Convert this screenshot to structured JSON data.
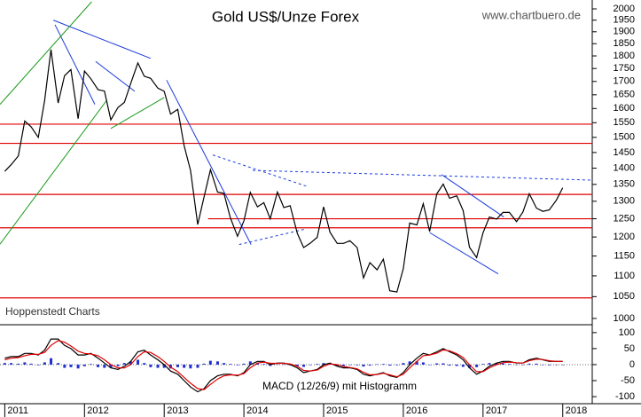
{
  "chart_data": [
    {
      "type": "line",
      "title": "Gold US$/Unze Forex",
      "source": "www.chartbuero.de",
      "annotation": "Hoppenstedt Charts",
      "x": [
        2011.0,
        2011.08,
        2011.17,
        2011.25,
        2011.33,
        2011.42,
        2011.5,
        2011.58,
        2011.67,
        2011.75,
        2011.83,
        2011.92,
        2012.0,
        2012.08,
        2012.17,
        2012.25,
        2012.33,
        2012.42,
        2012.5,
        2012.58,
        2012.67,
        2012.75,
        2012.83,
        2012.92,
        2013.0,
        2013.08,
        2013.17,
        2013.25,
        2013.33,
        2013.42,
        2013.5,
        2013.58,
        2013.67,
        2013.75,
        2013.83,
        2013.92,
        2014.0,
        2014.08,
        2014.17,
        2014.25,
        2014.33,
        2014.42,
        2014.5,
        2014.58,
        2014.67,
        2014.75,
        2014.83,
        2014.92,
        2015.0,
        2015.08,
        2015.17,
        2015.25,
        2015.33,
        2015.42,
        2015.5,
        2015.58,
        2015.67,
        2015.75,
        2015.83,
        2015.92,
        2016.0,
        2016.08,
        2016.17,
        2016.25,
        2016.33,
        2016.42,
        2016.5,
        2016.58,
        2016.67,
        2016.75,
        2016.83,
        2016.92,
        2017.0,
        2017.08,
        2017.17,
        2017.25,
        2017.33,
        2017.42,
        2017.5,
        2017.58,
        2017.67,
        2017.75,
        2017.83,
        2017.92,
        2018.0
      ],
      "series": [
        {
          "color": "#000000",
          "values": [
            1390,
            1411,
            1439,
            1556,
            1536,
            1500,
            1628,
            1826,
            1620,
            1722,
            1746,
            1564,
            1740,
            1710,
            1669,
            1664,
            1560,
            1604,
            1622,
            1692,
            1772,
            1720,
            1712,
            1675,
            1663,
            1580,
            1597,
            1472,
            1393,
            1234,
            1313,
            1395,
            1327,
            1323,
            1253,
            1202,
            1244,
            1326,
            1284,
            1296,
            1250,
            1327,
            1282,
            1287,
            1210,
            1172,
            1183,
            1199,
            1284,
            1213,
            1183,
            1183,
            1190,
            1172,
            1095,
            1133,
            1115,
            1142,
            1064,
            1061,
            1118,
            1238,
            1233,
            1293,
            1215,
            1322,
            1351,
            1309,
            1316,
            1273,
            1173,
            1146,
            1211,
            1255,
            1249,
            1268,
            1268,
            1242,
            1269,
            1322,
            1280,
            1271,
            1275,
            1303,
            1340
          ]
        }
      ],
      "xlim": [
        2010.94,
        2018.37
      ],
      "ylim": [
        986,
        2032
      ],
      "log_scale": true,
      "yticks": [
        1000,
        1050,
        1100,
        1150,
        1200,
        1250,
        1300,
        1350,
        1400,
        1450,
        1500,
        1550,
        1600,
        1650,
        1700,
        1750,
        1800,
        1850,
        1900,
        1950,
        2000
      ],
      "horizontal_lines": {
        "color": "#e00000",
        "lines": [
          {
            "value": 1545
          },
          {
            "value": 1480
          },
          {
            "value": 1320
          },
          {
            "value": 1250,
            "from": 2013.55
          },
          {
            "value": 1225
          },
          {
            "value": 1047
          }
        ]
      },
      "trend_lines": [
        {
          "color": "#1a3adc",
          "dashed": false,
          "points": [
            [
              2011.61,
              1950
            ],
            [
              2012.83,
              1790
            ]
          ]
        },
        {
          "color": "#1a3adc",
          "dashed": false,
          "points": [
            [
              2011.63,
              1930
            ],
            [
              2012.13,
              1615
            ]
          ]
        },
        {
          "color": "#1a3adc",
          "dashed": false,
          "points": [
            [
              2012.14,
              1778
            ],
            [
              2012.63,
              1663
            ]
          ]
        },
        {
          "color": "#1a3adc",
          "dashed": false,
          "points": [
            [
              2013.03,
              1705
            ],
            [
              2014.09,
              1180
            ]
          ]
        },
        {
          "color": "#1a3adc",
          "dashed": true,
          "points": [
            [
              2013.61,
              1442
            ],
            [
              2014.78,
              1345
            ]
          ]
        },
        {
          "color": "#1a3adc",
          "dashed": true,
          "points": [
            [
              2013.94,
              1180
            ],
            [
              2014.78,
              1222
            ]
          ]
        },
        {
          "color": "#1a3adc",
          "dashed": true,
          "points": [
            [
              2014.11,
              1393
            ],
            [
              2018.37,
              1363
            ]
          ]
        },
        {
          "color": "#1a3adc",
          "dashed": false,
          "points": [
            [
              2016.48,
              1380
            ],
            [
              2017.26,
              1255
            ]
          ]
        },
        {
          "color": "#1a3adc",
          "dashed": false,
          "points": [
            [
              2016.33,
              1212
            ],
            [
              2017.19,
              1105
            ]
          ]
        },
        {
          "color": "#1a9a1a",
          "dashed": false,
          "points": [
            [
              2010.94,
              1615
            ],
            [
              2012.09,
              2032
            ]
          ]
        },
        {
          "color": "#1a9a1a",
          "dashed": false,
          "points": [
            [
              2010.94,
              1181
            ],
            [
              2012.28,
              1630
            ]
          ]
        },
        {
          "color": "#1a9a1a",
          "dashed": false,
          "points": [
            [
              2012.33,
              1530
            ],
            [
              2013.0,
              1640
            ]
          ]
        }
      ]
    },
    {
      "type": "line",
      "annotation": "MACD (12/26/9) mit Histogramm",
      "x": [
        2011.0,
        2011.08,
        2011.17,
        2011.25,
        2011.33,
        2011.42,
        2011.5,
        2011.58,
        2011.67,
        2011.75,
        2011.83,
        2011.92,
        2012.0,
        2012.08,
        2012.17,
        2012.25,
        2012.33,
        2012.42,
        2012.5,
        2012.58,
        2012.67,
        2012.75,
        2012.83,
        2012.92,
        2013.0,
        2013.08,
        2013.17,
        2013.25,
        2013.33,
        2013.42,
        2013.5,
        2013.58,
        2013.67,
        2013.75,
        2013.83,
        2013.92,
        2014.0,
        2014.08,
        2014.17,
        2014.25,
        2014.33,
        2014.42,
        2014.5,
        2014.58,
        2014.67,
        2014.75,
        2014.83,
        2014.92,
        2015.0,
        2015.08,
        2015.17,
        2015.25,
        2015.33,
        2015.42,
        2015.5,
        2015.58,
        2015.67,
        2015.75,
        2015.83,
        2015.92,
        2016.0,
        2016.08,
        2016.17,
        2016.25,
        2016.33,
        2016.42,
        2016.5,
        2016.58,
        2016.67,
        2016.75,
        2016.83,
        2016.92,
        2017.0,
        2017.08,
        2017.17,
        2017.25,
        2017.33,
        2017.42,
        2017.5,
        2017.58,
        2017.67,
        2017.75,
        2017.83,
        2017.92,
        2018.0
      ],
      "series": [
        {
          "color": "#000000",
          "values": [
            20,
            25,
            25,
            35,
            35,
            30,
            45,
            80,
            80,
            60,
            50,
            30,
            30,
            35,
            20,
            5,
            -10,
            -15,
            -5,
            10,
            40,
            45,
            30,
            15,
            0,
            -20,
            -30,
            -50,
            -70,
            -85,
            -75,
            -50,
            -35,
            -30,
            -30,
            -35,
            -25,
            0,
            10,
            10,
            0,
            5,
            5,
            0,
            -10,
            -25,
            -20,
            -15,
            0,
            5,
            -5,
            -10,
            -10,
            -15,
            -30,
            -35,
            -30,
            -25,
            -35,
            -40,
            -25,
            0,
            20,
            35,
            30,
            40,
            50,
            40,
            30,
            15,
            -10,
            -30,
            -20,
            -5,
            5,
            10,
            10,
            5,
            5,
            15,
            20,
            15,
            10,
            10,
            10
          ]
        },
        {
          "color": "#e00000",
          "values": [
            15,
            20,
            22,
            28,
            32,
            32,
            38,
            60,
            75,
            70,
            58,
            42,
            35,
            33,
            28,
            15,
            0,
            -10,
            -10,
            0,
            25,
            40,
            38,
            25,
            10,
            -8,
            -22,
            -40,
            -58,
            -75,
            -78,
            -62,
            -45,
            -35,
            -32,
            -33,
            -28,
            -10,
            5,
            8,
            4,
            4,
            4,
            2,
            -5,
            -18,
            -20,
            -17,
            -5,
            2,
            0,
            -6,
            -9,
            -13,
            -24,
            -32,
            -31,
            -27,
            -32,
            -38,
            -30,
            -10,
            10,
            28,
            30,
            36,
            46,
            43,
            34,
            22,
            0,
            -22,
            -22,
            -10,
            0,
            6,
            8,
            6,
            5,
            12,
            17,
            16,
            12,
            10,
            10
          ]
        }
      ],
      "histogram": {
        "color": "#2030d0",
        "values": [
          5,
          5,
          3,
          7,
          3,
          -2,
          7,
          20,
          5,
          -10,
          -8,
          -12,
          -5,
          2,
          -8,
          -10,
          -10,
          -5,
          5,
          10,
          15,
          5,
          -8,
          -10,
          -10,
          -12,
          -8,
          -10,
          -12,
          -10,
          3,
          12,
          10,
          5,
          2,
          -2,
          3,
          10,
          5,
          2,
          -4,
          1,
          1,
          -2,
          -5,
          -7,
          0,
          2,
          5,
          3,
          -5,
          -4,
          -1,
          -2,
          -6,
          -3,
          1,
          2,
          -3,
          -2,
          5,
          10,
          10,
          7,
          0,
          4,
          4,
          -3,
          -4,
          -7,
          -10,
          -8,
          2,
          5,
          5,
          4,
          2,
          -1,
          0,
          3,
          3,
          -1,
          -2,
          0,
          0
        ]
      },
      "xlim": [
        2010.94,
        2018.37
      ],
      "ylim": [
        -122,
        119
      ],
      "yticks": [
        -100,
        -50,
        0,
        50,
        100
      ],
      "xticks": [
        2011,
        2012,
        2013,
        2014,
        2015,
        2016,
        2017,
        2018
      ],
      "zero_line": true
    }
  ]
}
